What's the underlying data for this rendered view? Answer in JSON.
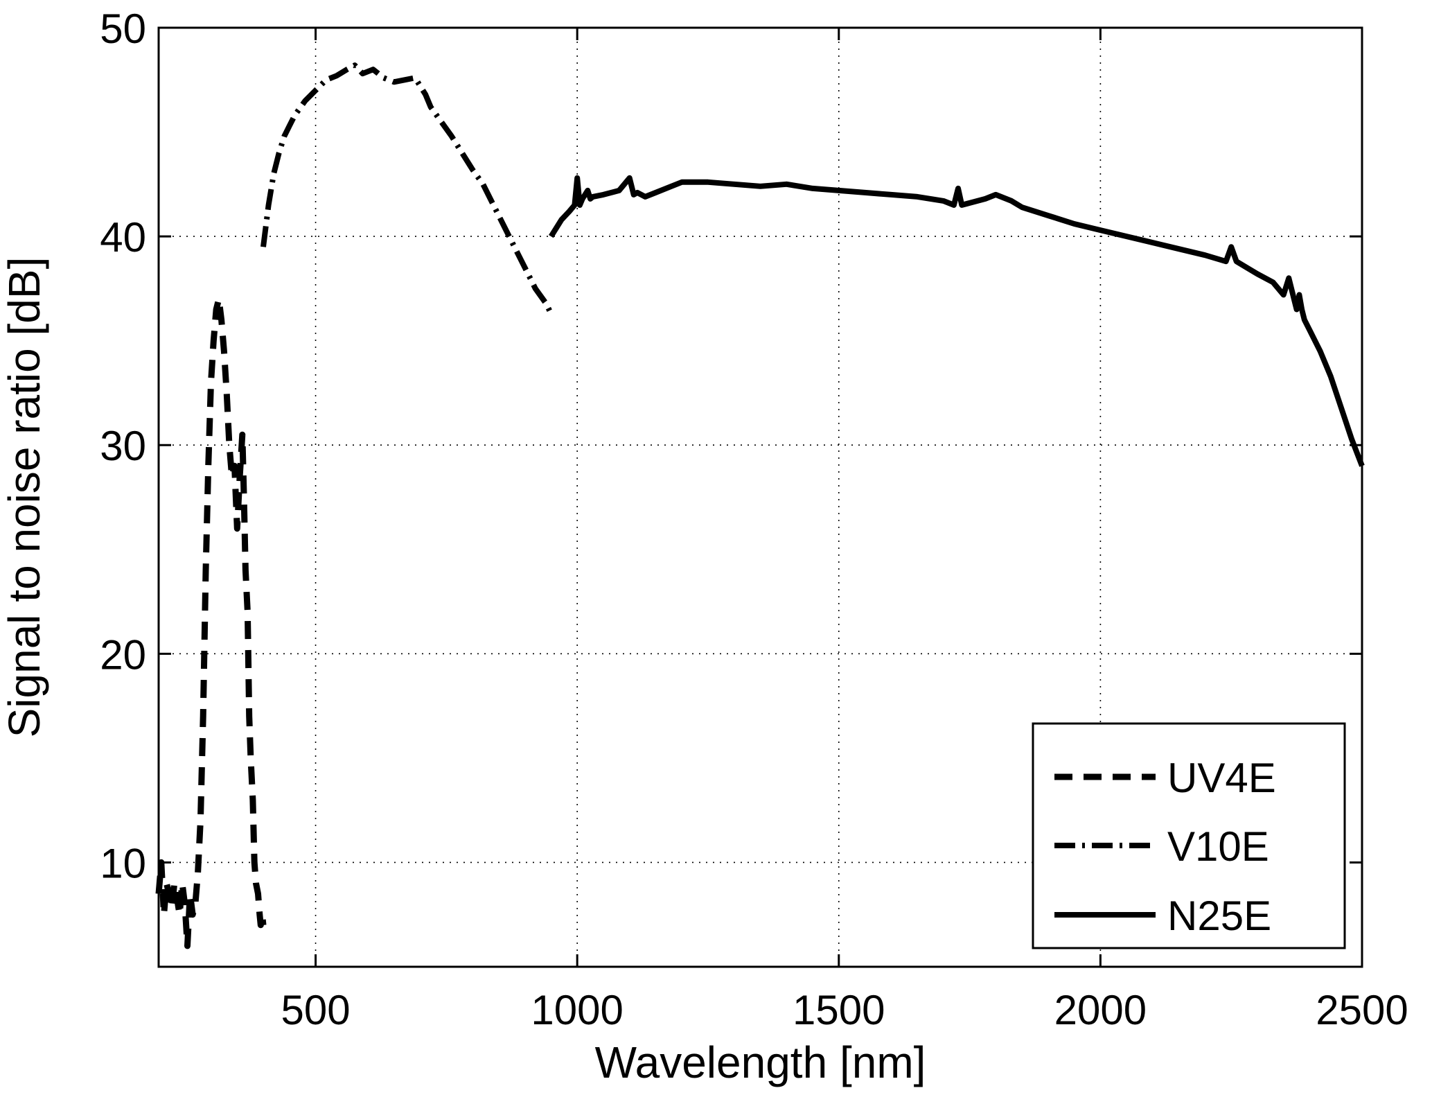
{
  "chart_data": {
    "type": "line",
    "title": "",
    "xlabel": "Wavelength [nm]",
    "ylabel": "Signal to noise ratio [dB]",
    "xlim": [
      200,
      2500
    ],
    "ylim": [
      5,
      50
    ],
    "xticks": [
      500,
      1000,
      1500,
      2000,
      2500
    ],
    "yticks": [
      10,
      20,
      30,
      40,
      50
    ],
    "grid": true,
    "legend_position": "bottom-right",
    "series": [
      {
        "name": "UV4E",
        "style": "dashed",
        "color": "#000000",
        "x": [
          200,
          205,
          210,
          215,
          220,
          225,
          230,
          235,
          240,
          245,
          250,
          255,
          260,
          265,
          270,
          275,
          280,
          285,
          290,
          295,
          300,
          305,
          310,
          315,
          320,
          325,
          330,
          335,
          340,
          345,
          350,
          355,
          360,
          363,
          366,
          370,
          373,
          376,
          380,
          383,
          386,
          390,
          393,
          395,
          398,
          400
        ],
        "y": [
          8.5,
          10.0,
          7.5,
          9.0,
          8.5,
          7.8,
          9.0,
          8.3,
          7.5,
          9.0,
          8.0,
          6.0,
          8.5,
          7.5,
          8.0,
          9.5,
          12.0,
          17.0,
          24.0,
          29.0,
          33.0,
          35.0,
          36.5,
          37.0,
          36.0,
          34.5,
          32.5,
          30.0,
          28.5,
          29.0,
          26.0,
          28.5,
          30.5,
          27.5,
          24.0,
          22.0,
          17.0,
          15.0,
          13.0,
          10.0,
          9.0,
          8.5,
          7.5,
          7.0,
          7.5,
          7.0
        ]
      },
      {
        "name": "V10E",
        "style": "dashdot",
        "color": "#000000",
        "x": [
          400,
          410,
          420,
          430,
          440,
          450,
          460,
          480,
          500,
          520,
          540,
          560,
          575,
          590,
          610,
          630,
          650,
          670,
          690,
          700,
          710,
          720,
          740,
          760,
          780,
          800,
          820,
          840,
          860,
          880,
          900,
          920,
          940,
          950
        ],
        "y": [
          39.5,
          41.5,
          43.0,
          44.0,
          44.8,
          45.3,
          45.8,
          46.5,
          47.0,
          47.5,
          47.7,
          48.0,
          48.2,
          47.8,
          48.0,
          47.6,
          47.4,
          47.5,
          47.6,
          47.2,
          46.8,
          46.2,
          45.5,
          44.8,
          44.0,
          43.2,
          42.5,
          41.5,
          40.5,
          39.5,
          38.5,
          37.5,
          36.8,
          36.3
        ]
      },
      {
        "name": "N25E",
        "style": "solid",
        "color": "#000000",
        "x": [
          950,
          970,
          985,
          995,
          1000,
          1005,
          1010,
          1020,
          1025,
          1030,
          1050,
          1080,
          1100,
          1108,
          1115,
          1130,
          1150,
          1180,
          1200,
          1250,
          1300,
          1350,
          1400,
          1450,
          1500,
          1550,
          1600,
          1650,
          1700,
          1720,
          1728,
          1735,
          1750,
          1780,
          1800,
          1830,
          1850,
          1900,
          1950,
          2000,
          2050,
          2100,
          2150,
          2200,
          2240,
          2250,
          2260,
          2280,
          2300,
          2330,
          2350,
          2360,
          2370,
          2375,
          2380,
          2385,
          2390,
          2400,
          2420,
          2440,
          2460,
          2480,
          2500
        ],
        "y": [
          40.0,
          40.8,
          41.2,
          41.5,
          42.8,
          41.5,
          41.8,
          42.2,
          41.8,
          41.9,
          42.0,
          42.2,
          42.8,
          42.0,
          42.1,
          41.9,
          42.1,
          42.4,
          42.6,
          42.6,
          42.5,
          42.4,
          42.5,
          42.3,
          42.2,
          42.1,
          42.0,
          41.9,
          41.7,
          41.5,
          42.3,
          41.5,
          41.6,
          41.8,
          42.0,
          41.7,
          41.4,
          41.0,
          40.6,
          40.3,
          40.0,
          39.7,
          39.4,
          39.1,
          38.8,
          39.5,
          38.8,
          38.5,
          38.2,
          37.8,
          37.2,
          38.0,
          37.0,
          36.5,
          37.2,
          36.5,
          36.0,
          35.5,
          34.5,
          33.3,
          31.8,
          30.3,
          29.0
        ]
      }
    ]
  }
}
